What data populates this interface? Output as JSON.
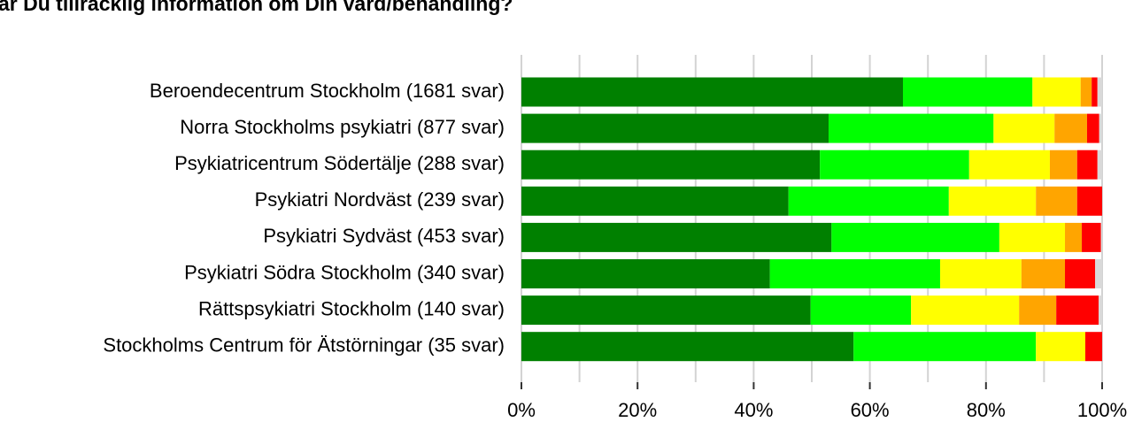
{
  "chart_data": {
    "type": "stacked_barh",
    "title": "ar Du tillräcklig information om Din vård/behandling?",
    "categories": [
      "Beroendecentrum Stockholm (1681 svar)",
      "Norra Stockholms psykiatri (877 svar)",
      "Psykiatricentrum Södertälje (288 svar)",
      "Psykiatri Nordväst (239 svar)",
      "Psykiatri Sydväst (453 svar)",
      "Psykiatri Södra Stockholm (340 svar)",
      "Rättspsykiatri Stockholm (140 svar)",
      "Stockholms Centrum för Ätstörningar (35 svar)"
    ],
    "series": [
      {
        "color": "#008000",
        "values": [
          65.7,
          52.9,
          51.4,
          46.0,
          53.4,
          42.8,
          49.8,
          57.2
        ]
      },
      {
        "color": "#00ff00",
        "values": [
          22.3,
          28.4,
          25.7,
          27.6,
          28.9,
          29.3,
          17.3,
          31.4
        ]
      },
      {
        "color": "#ffff00",
        "values": [
          8.3,
          10.5,
          13.9,
          15.0,
          11.3,
          14.0,
          18.6,
          8.5
        ]
      },
      {
        "color": "#ffa500",
        "values": [
          1.9,
          5.6,
          4.7,
          7.1,
          2.9,
          7.5,
          6.4,
          0
        ]
      },
      {
        "color": "#ff0000",
        "values": [
          1.0,
          2.1,
          3.5,
          4.3,
          3.3,
          5.2,
          7.3,
          2.9
        ]
      },
      {
        "color": "#d9d9d9",
        "values": [
          0.8,
          0.5,
          0.8,
          0,
          0.2,
          1.2,
          0.6,
          0
        ]
      }
    ],
    "xlim": [
      0,
      100
    ],
    "xticks": [
      {
        "value": 0,
        "label": "0%"
      },
      {
        "value": 20,
        "label": "20%"
      },
      {
        "value": 40,
        "label": "40%"
      },
      {
        "value": 60,
        "label": "60%"
      },
      {
        "value": 80,
        "label": "80%"
      },
      {
        "value": 100,
        "label": "100%"
      }
    ],
    "minor_xticks": [
      10,
      30,
      50,
      70,
      90
    ],
    "grid": true
  }
}
